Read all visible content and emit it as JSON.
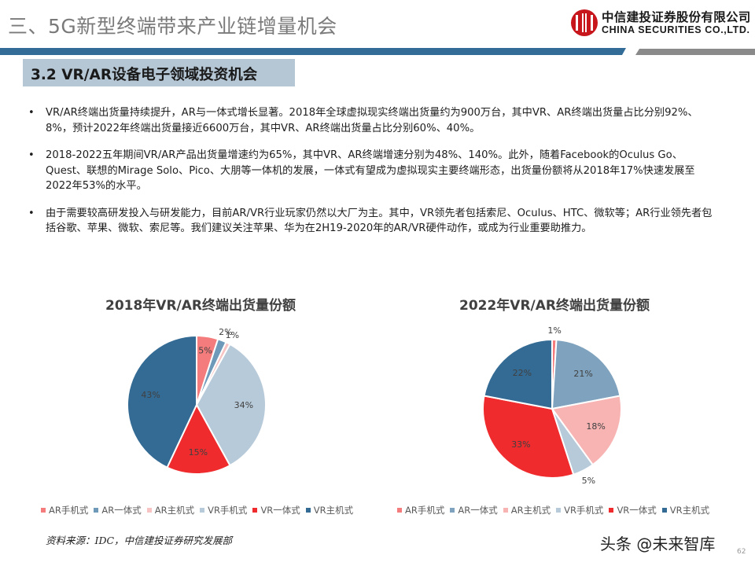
{
  "header": {
    "title": "三、5G新型终端带来产业链增量机会",
    "logo": {
      "cn": "中信建投证券股份有限公司",
      "en": "CHINA SECURITIES CO.,LTD."
    },
    "bar_colors": {
      "blue": "#336c96",
      "gray": "#8a8a8a"
    }
  },
  "section": {
    "title": "3.2 VR/AR设备电子领域投资机会"
  },
  "bullets": [
    "VR/AR终端出货量持续提升，AR与一体式增长显著。2018年全球虚拟现实终端出货量约为900万台，其中VR、AR终端出货量占比分别92%、8%，预计2022年终端出货量接近6600万台，其中VR、AR终端出货量占比分别60%、40%。",
    "2018-2022五年期间VR/AR产品出货量增速约为65%，其中VR、AR终端增速分别为48%、140%。此外，随着Facebook的Oculus Go、Quest、联想的Mirage Solo、Pico、大朋等一体机的发展，一体式有望成为虚拟现实主要终端形态，出货量份额将从2018年17%快速发展至2022年53%的水平。",
    "由于需要较高研发投入与研发能力，目前AR/VR行业玩家仍然以大厂为主。其中，VR领先者包括索尼、Oculus、HTC、微软等；AR行业领先者包括谷歌、苹果、微软、索尼等。我们建议关注苹果、华为在2H19-2020年的AR/VR硬件动作，或成为行业重要助推力。"
  ],
  "chart_data": [
    {
      "type": "pie",
      "title": "2018年VR/AR终端出货量份额",
      "categories": [
        "AR手机式",
        "AR一体式",
        "AR主机式",
        "VR手机式",
        "VR一体式",
        "VR主机式"
      ],
      "values": [
        5,
        2,
        1,
        34,
        15,
        43
      ],
      "labels": [
        "5%",
        "2%",
        "1%",
        "34%",
        "15%",
        "43%"
      ],
      "colors": [
        "#f47c7c",
        "#6e99b8",
        "#f7c3c3",
        "#b7cad9",
        "#ef2b2d",
        "#346b94"
      ],
      "legend_position": "bottom",
      "start_angle": 0,
      "direction": "clockwise"
    },
    {
      "type": "pie",
      "title": "2022年VR/AR终端出货量份额",
      "categories": [
        "AR手机式",
        "AR一体式",
        "AR主机式",
        "VR手机式",
        "VR一体式",
        "VR主机式"
      ],
      "values": [
        1,
        21,
        18,
        5,
        33,
        22
      ],
      "labels": [
        "1%",
        "21%",
        "18%",
        "5%",
        "33%",
        "22%"
      ],
      "colors": [
        "#f47c7c",
        "#7fa3be",
        "#f8b3b3",
        "#b7cad9",
        "#ef2b2d",
        "#346b94"
      ],
      "legend_position": "bottom",
      "start_angle": 0,
      "direction": "clockwise"
    }
  ],
  "legend": {
    "items": [
      "AR手机式",
      "AR一体式",
      "AR主机式",
      "VR手机式",
      "VR一体式",
      "VR主机式"
    ]
  },
  "footer": {
    "source": "资料来源：IDC，中信建投证券研究发展部",
    "watermark": "头条 @未来智库",
    "page_number": "62"
  }
}
